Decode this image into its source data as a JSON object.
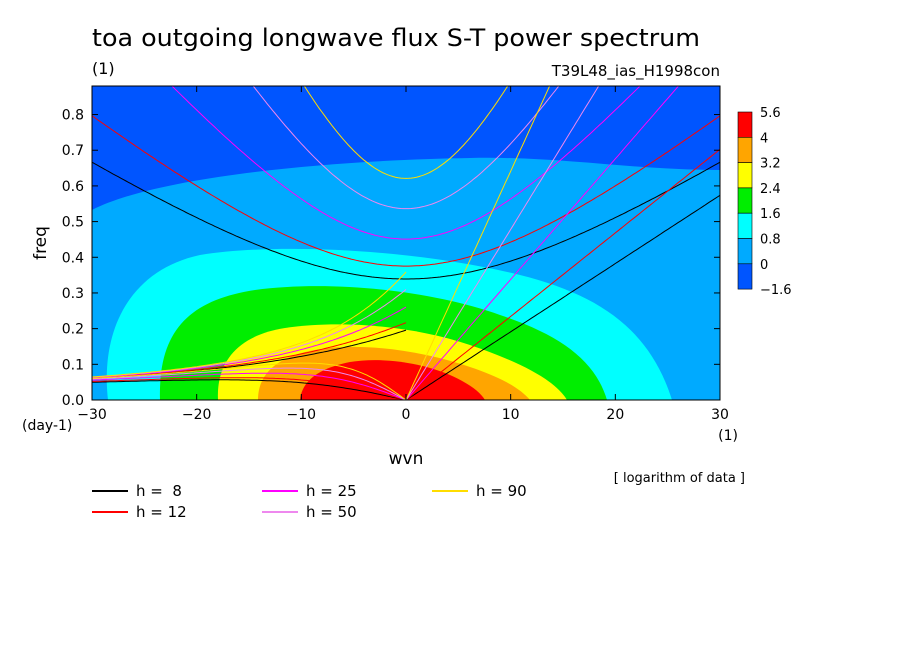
{
  "chart_data": {
    "type": "heatmap",
    "title": "toa outgoing longwave flux S-T power spectrum",
    "title_unit": "(1)",
    "run_label": "T39L48_ias_H1998con",
    "xlabel": "wvn",
    "xunit": "(1)",
    "ylabel": "freq",
    "yunit": "(day-1)",
    "xlim": [
      -30,
      30
    ],
    "ylim": [
      0,
      0.88
    ],
    "xticks": [
      "−30",
      "−20",
      "−10",
      "0",
      "10",
      "20",
      "30"
    ],
    "yticks": [
      "0.0",
      "0.1",
      "0.2",
      "0.3",
      "0.4",
      "0.5",
      "0.6",
      "0.7",
      "0.8"
    ],
    "note": "[ logarithm of data ]",
    "colorbar": {
      "labels": [
        "5.6",
        "4",
        "3.2",
        "2.4",
        "1.6",
        "0.8",
        "0",
        "−1.6"
      ],
      "levels": [
        {
          "from": 4.0,
          "to": 5.6,
          "color": "#ff0000"
        },
        {
          "from": 3.2,
          "to": 4.0,
          "color": "#ffa500"
        },
        {
          "from": 2.4,
          "to": 3.2,
          "color": "#ffff00"
        },
        {
          "from": 1.6,
          "to": 2.4,
          "color": "#00ee00"
        },
        {
          "from": 0.8,
          "to": 1.6,
          "color": "#00ffff"
        },
        {
          "from": 0.0,
          "to": 0.8,
          "color": "#00aaff"
        },
        {
          "from": -1.6,
          "to": 0.0,
          "color": "#0055ff"
        }
      ]
    },
    "series": [
      {
        "name": "h =  8",
        "h": 8,
        "color": "#000000"
      },
      {
        "name": "h = 12",
        "h": 12,
        "color": "#ff0000"
      },
      {
        "name": "h = 25",
        "h": 25,
        "color": "#ff00ff"
      },
      {
        "name": "h = 50",
        "h": 50,
        "color": "#ee88ee"
      },
      {
        "name": "h = 90",
        "h": 90,
        "color": "#ffdd00"
      }
    ]
  }
}
